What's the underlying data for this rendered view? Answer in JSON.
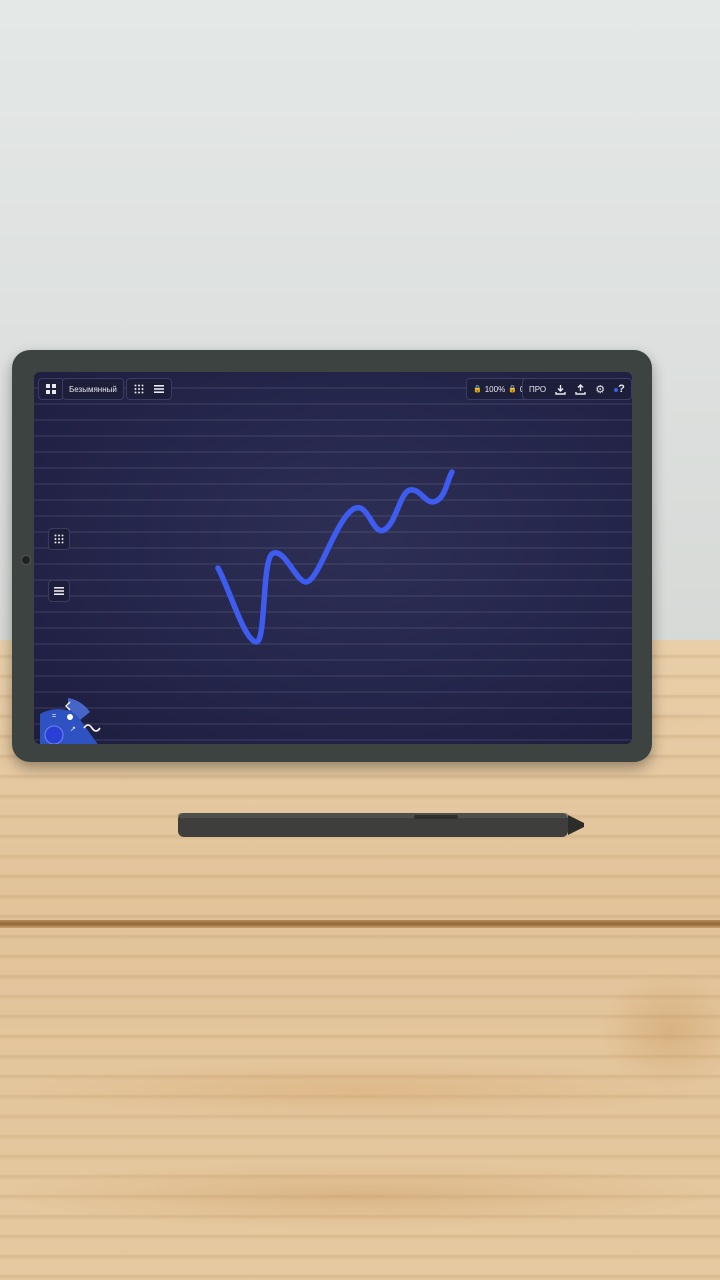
{
  "app": {
    "document_title": "Безымянный",
    "zoom_lock": "100%",
    "rotation_lock": "0°",
    "pro_label": "ПРО",
    "help_label": "?"
  },
  "icons": {
    "menu": "grid-menu-icon",
    "templates": "dots-grid-icon",
    "layers": "layers-icon",
    "lock": "lock-icon",
    "download": "download-icon",
    "share": "share-icon",
    "settings": "gear-icon",
    "help": "help-icon",
    "undo": "undo-icon",
    "color_dot": "color-circle-icon"
  },
  "colors": {
    "canvas": "#26274c",
    "ink": "#3f5cf0",
    "toolbar": "#1d1e3a",
    "tool_wheel": "#2f55c8"
  }
}
